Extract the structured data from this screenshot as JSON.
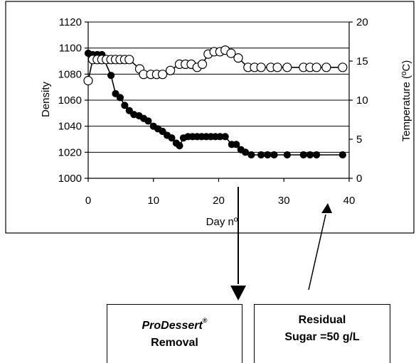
{
  "chart_data": {
    "type": "scatter",
    "xlabel": "Day nº",
    "ylabel_left": "Density",
    "ylabel_right": "Temperature (ºC)",
    "xlim": [
      0,
      40
    ],
    "ylim_left": [
      1000,
      1120
    ],
    "ylim_right": [
      0,
      20
    ],
    "x_ticks": [
      "0",
      "10",
      "20",
      "30",
      "40"
    ],
    "y_left_ticks": [
      "1000",
      "1020",
      "1040",
      "1060",
      "1080",
      "1100",
      "1120"
    ],
    "y_right_ticks": [
      "0",
      "5",
      "10",
      "15",
      "20"
    ],
    "grid": "horizontal",
    "series": [
      {
        "marker": "filled-circle",
        "axis": "left",
        "points": [
          [
            0,
            1096
          ],
          [
            0.7,
            1095
          ],
          [
            1.4,
            1095
          ],
          [
            2.1,
            1095
          ],
          [
            3.5,
            1079
          ],
          [
            4.2,
            1065
          ],
          [
            4.9,
            1062
          ],
          [
            5.6,
            1056
          ],
          [
            6.3,
            1052
          ],
          [
            7,
            1049
          ],
          [
            7.8,
            1048
          ],
          [
            8.5,
            1046
          ],
          [
            9.2,
            1044
          ],
          [
            10,
            1040
          ],
          [
            10.7,
            1038
          ],
          [
            11.4,
            1036
          ],
          [
            12.1,
            1033
          ],
          [
            12.8,
            1031
          ],
          [
            13.5,
            1027
          ],
          [
            14,
            1025
          ],
          [
            14.6,
            1031
          ],
          [
            15.3,
            1032
          ],
          [
            16,
            1032
          ],
          [
            16.7,
            1032
          ],
          [
            17.4,
            1032
          ],
          [
            18.1,
            1032
          ],
          [
            18.8,
            1032
          ],
          [
            19.5,
            1032
          ],
          [
            20.2,
            1032
          ],
          [
            21,
            1032
          ],
          [
            22,
            1026
          ],
          [
            22.7,
            1026
          ],
          [
            23.4,
            1022
          ],
          [
            24.1,
            1020
          ],
          [
            25,
            1018
          ],
          [
            26.5,
            1018
          ],
          [
            27.5,
            1018
          ],
          [
            28.5,
            1018
          ],
          [
            30.5,
            1018
          ],
          [
            33,
            1018
          ],
          [
            34,
            1018
          ],
          [
            35,
            1018
          ],
          [
            39,
            1018
          ]
        ]
      },
      {
        "marker": "open-circle",
        "axis": "right",
        "points": [
          [
            0,
            12.5
          ],
          [
            0.7,
            15.2
          ],
          [
            1.4,
            15.2
          ],
          [
            2.1,
            15.2
          ],
          [
            2.8,
            15.2
          ],
          [
            3.5,
            15.2
          ],
          [
            4.2,
            15.2
          ],
          [
            4.9,
            15.2
          ],
          [
            5.6,
            15.2
          ],
          [
            6.3,
            15.2
          ],
          [
            7.9,
            14.0
          ],
          [
            8.5,
            13.3
          ],
          [
            9.6,
            13.3
          ],
          [
            10.5,
            13.3
          ],
          [
            11.4,
            13.3
          ],
          [
            12.6,
            13.8
          ],
          [
            14,
            14.6
          ],
          [
            14.9,
            14.6
          ],
          [
            15.8,
            14.6
          ],
          [
            16.7,
            14.2
          ],
          [
            17.5,
            14.6
          ],
          [
            18.4,
            15.9
          ],
          [
            19.3,
            16.2
          ],
          [
            20.2,
            16.2
          ],
          [
            21,
            16.4
          ],
          [
            21.9,
            16.0
          ],
          [
            23,
            15.4
          ],
          [
            24.5,
            14.2
          ],
          [
            25.5,
            14.2
          ],
          [
            26.5,
            14.2
          ],
          [
            28,
            14.2
          ],
          [
            29,
            14.2
          ],
          [
            30.5,
            14.2
          ],
          [
            33,
            14.2
          ],
          [
            34,
            14.2
          ],
          [
            35,
            14.2
          ],
          [
            36.5,
            14.2
          ],
          [
            39,
            14.2
          ]
        ]
      }
    ]
  },
  "annotations": {
    "box1_product": "ProDessert",
    "box1_registered": "®",
    "box1_action": "Removal",
    "box2_line1": "Residual",
    "box2_line2": "Sugar =50 g/L"
  }
}
